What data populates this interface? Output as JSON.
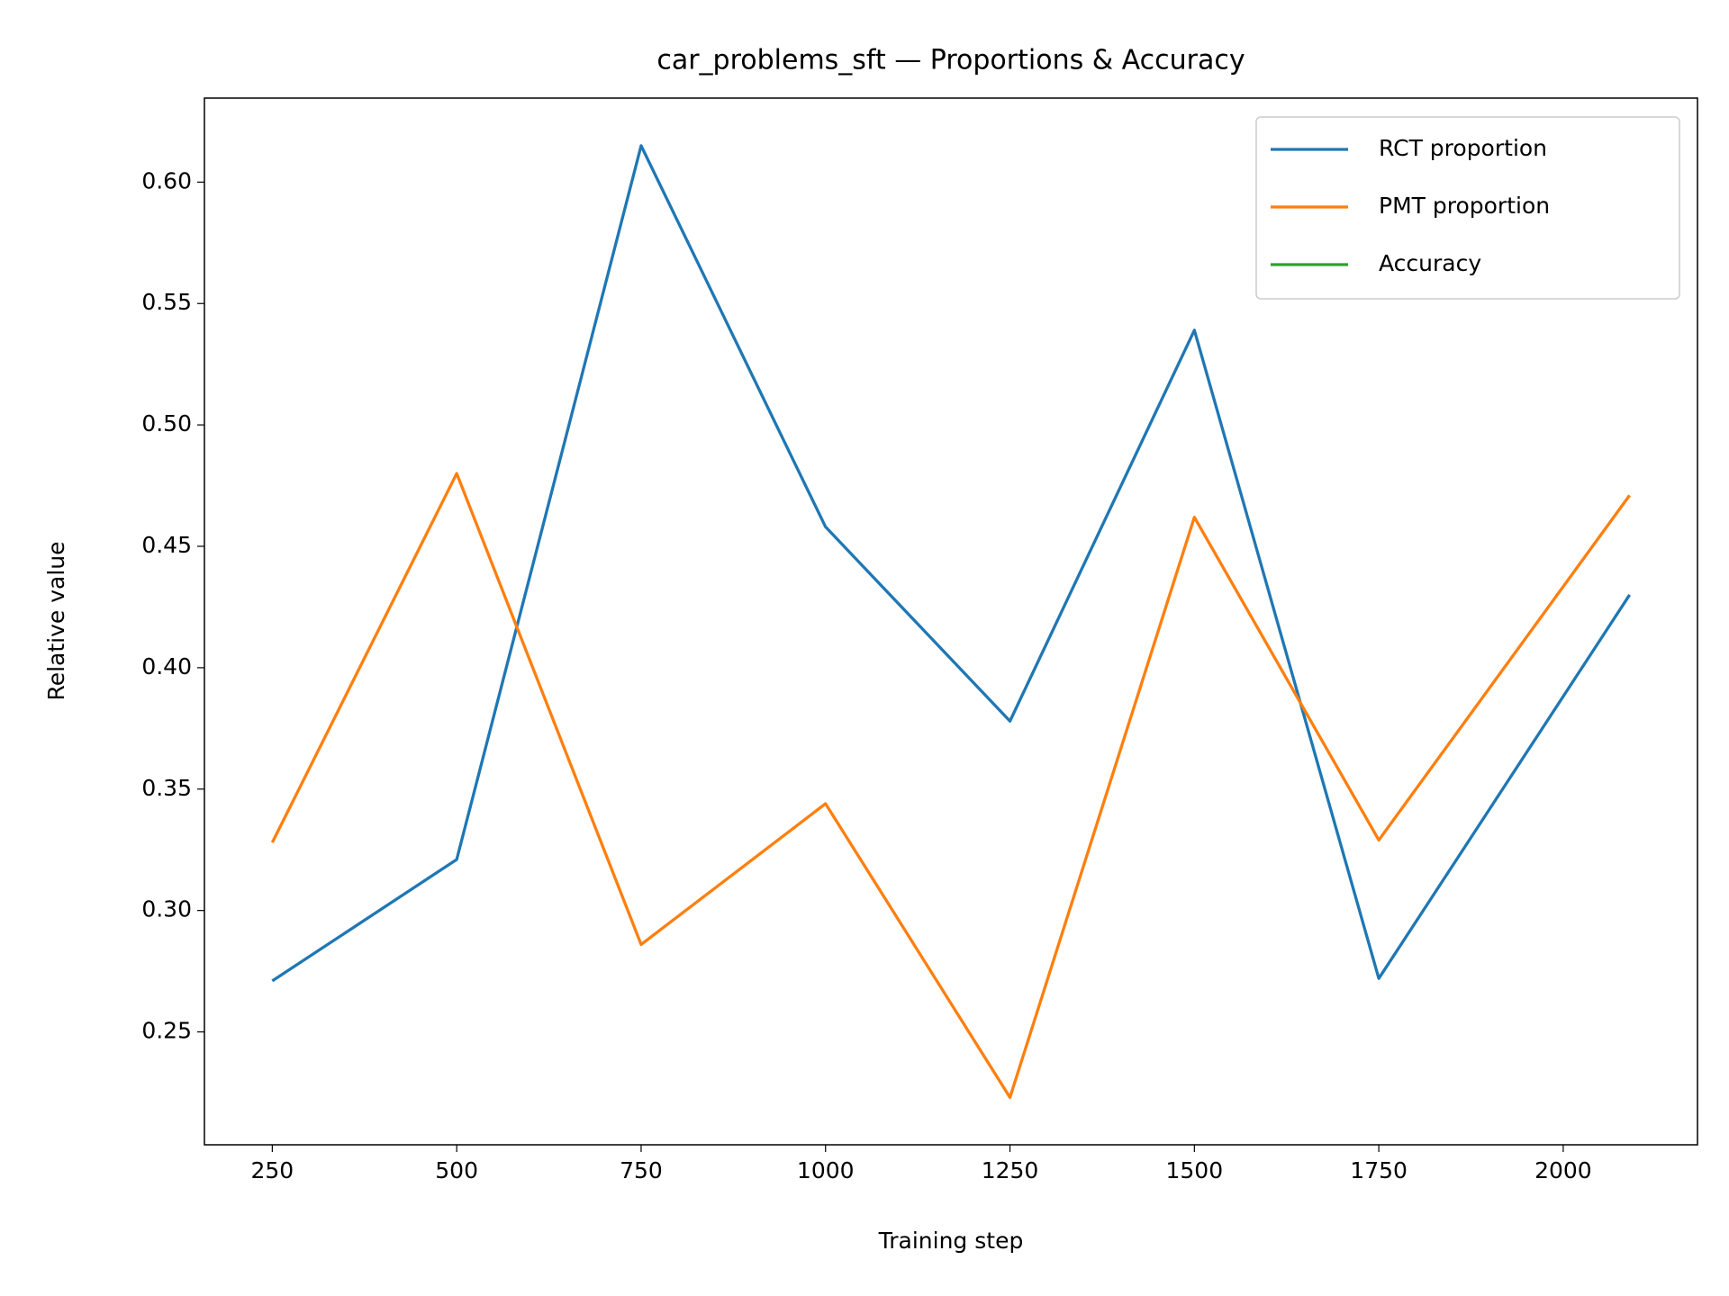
{
  "chart_data": {
    "type": "line",
    "title": "car_problems_sft — Proportions & Accuracy",
    "xlabel": "Training step",
    "ylabel": "Relative value",
    "x": [
      250,
      500,
      750,
      1000,
      1250,
      1500,
      1750,
      2090
    ],
    "series": [
      {
        "name": "RCT proportion",
        "color": "#1f77b4",
        "values": [
          0.271,
          0.321,
          0.615,
          0.458,
          0.378,
          0.539,
          0.272,
          0.43
        ]
      },
      {
        "name": "PMT proportion",
        "color": "#ff7f0e",
        "values": [
          0.328,
          0.48,
          0.286,
          0.344,
          0.223,
          0.462,
          0.329,
          0.471
        ]
      },
      {
        "name": "Accuracy",
        "color": "#2ca02c",
        "values": [
          null,
          null,
          null,
          null,
          null,
          null,
          null,
          null
        ]
      }
    ],
    "xlim": [
      158,
      2182
    ],
    "xticks": [
      250,
      500,
      750,
      1000,
      1250,
      1500,
      1750,
      2000
    ],
    "ylim": [
      0.2035,
      0.6346
    ],
    "yticks": [
      {
        "value": 0.25,
        "label": "0.25"
      },
      {
        "value": 0.3,
        "label": "0.30"
      },
      {
        "value": 0.35,
        "label": "0.35"
      },
      {
        "value": 0.4,
        "label": "0.40"
      },
      {
        "value": 0.45,
        "label": "0.45"
      },
      {
        "value": 0.5,
        "label": "0.50"
      },
      {
        "value": 0.55,
        "label": "0.55"
      },
      {
        "value": 0.6,
        "label": "0.60"
      }
    ],
    "legend": "upper right",
    "grid": false
  }
}
